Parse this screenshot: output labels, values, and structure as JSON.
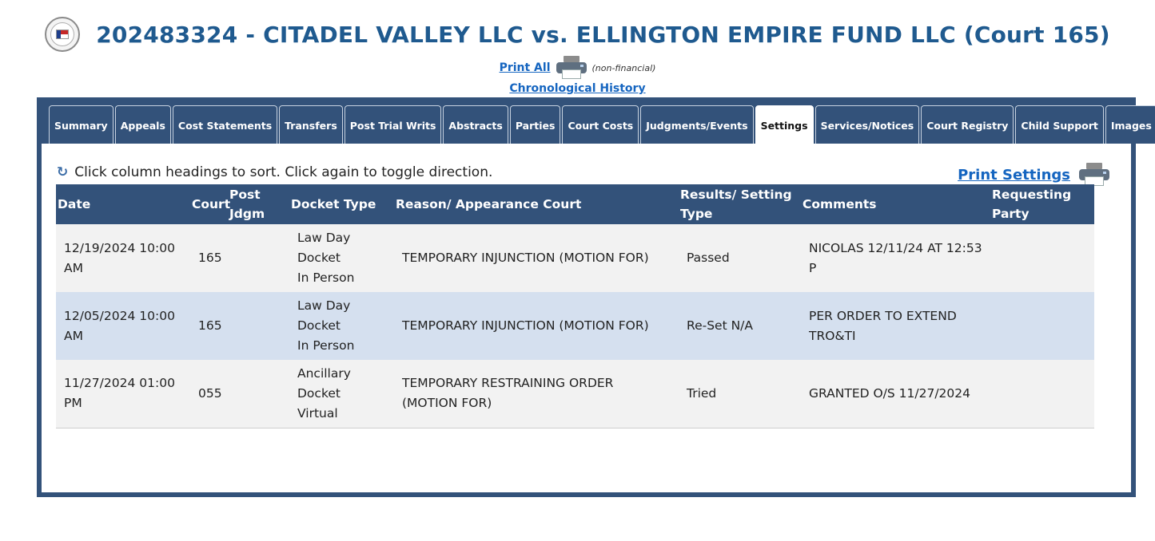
{
  "header": {
    "title": "202483324 - CITADEL VALLEY LLC vs. ELLINGTON EMPIRE FUND LLC (Court 165)",
    "seal_icon": "county-seal-icon"
  },
  "links": {
    "print_all": "Print All",
    "print_all_note": "(non-financial)",
    "chronological_history": "Chronological History"
  },
  "tabs": [
    {
      "label": "Summary"
    },
    {
      "label": "Appeals"
    },
    {
      "label": "Cost Statements"
    },
    {
      "label": "Transfers"
    },
    {
      "label": "Post Trial Writs"
    },
    {
      "label": "Abstracts"
    },
    {
      "label": "Parties"
    },
    {
      "label": "Court Costs"
    },
    {
      "label": "Judgments/Events"
    },
    {
      "label": "Settings"
    },
    {
      "label": "Services/Notices"
    },
    {
      "label": "Court Registry"
    },
    {
      "label": "Child Support"
    },
    {
      "label": "Images"
    }
  ],
  "active_tab": "Settings",
  "settings": {
    "sort_hint": "Click column headings to sort. Click again to toggle direction.",
    "print_label": "Print Settings",
    "columns": {
      "date": "Date",
      "court": "Court",
      "post_jdgm": "Post Jdgm",
      "docket_type": "Docket Type",
      "reason": "Reason/ Appearance Court",
      "results": "Results/ Setting Type",
      "comments": "Comments",
      "requesting_party": "Requesting Party"
    },
    "rows": [
      {
        "date": "12/19/2024 10:00 AM",
        "court": "165",
        "post_jdgm": "",
        "docket_line1": "Law Day",
        "docket_line2": "Docket",
        "docket_line3": "In Person",
        "reason": "TEMPORARY INJUNCTION (MOTION FOR)",
        "results": "Passed",
        "comments": "NICOLAS 12/11/24 AT 12:53 P",
        "requesting_party": ""
      },
      {
        "date": "12/05/2024 10:00 AM",
        "court": "165",
        "post_jdgm": "",
        "docket_line1": "Law Day",
        "docket_line2": "Docket",
        "docket_line3": "In Person",
        "reason": "TEMPORARY INJUNCTION (MOTION FOR)",
        "results": "Re-Set N/A",
        "comments": "PER ORDER TO EXTEND TRO&TI",
        "requesting_party": ""
      },
      {
        "date": "11/27/2024 01:00 PM",
        "court": "055",
        "post_jdgm": "",
        "docket_line1": "Ancillary",
        "docket_line2": "Docket",
        "docket_line3": "Virtual",
        "reason": "TEMPORARY RESTRAINING ORDER (MOTION FOR)",
        "results": "Tried",
        "comments": "GRANTED O/S 11/27/2024",
        "requesting_party": ""
      }
    ]
  },
  "colors": {
    "title": "#1f5a8f",
    "panel": "#33527a",
    "link": "#1565c0",
    "row_alt": "#d5e0ef",
    "row": "#f2f2f2"
  }
}
